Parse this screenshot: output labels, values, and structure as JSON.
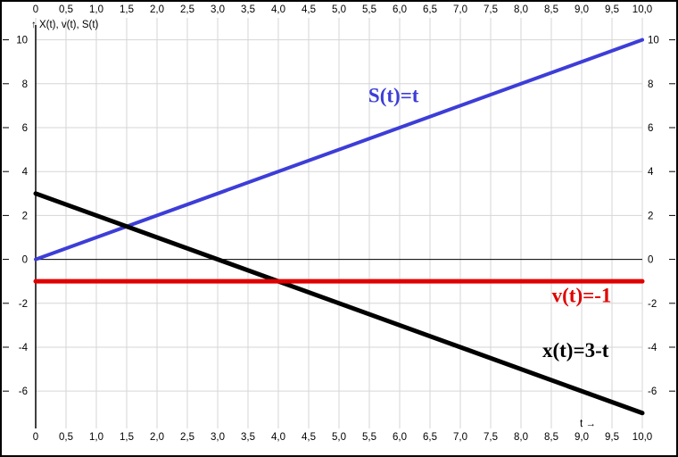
{
  "chart_data": {
    "type": "line",
    "title": "",
    "ylabel": "↑ X(t), v(t), S(t)",
    "xlabel": "t →",
    "xlim": [
      0,
      10
    ],
    "ylim": [
      -7.7,
      11.0
    ],
    "grid": true,
    "x_ticks": [
      0,
      0.5,
      1,
      1.5,
      2,
      2.5,
      3,
      3.5,
      4,
      4.5,
      5,
      5.5,
      6,
      6.5,
      7,
      7.5,
      8,
      8.5,
      9,
      9.5,
      10
    ],
    "x_tick_labels": [
      "0",
      "0,5",
      "1,0",
      "1,5",
      "2,0",
      "2,5",
      "3,0",
      "3,5",
      "4,0",
      "4,5",
      "5,0",
      "5,5",
      "6,0",
      "6,5",
      "7,0",
      "7,5",
      "8,0",
      "8,5",
      "9,0",
      "9,5",
      "10,0"
    ],
    "y_ticks": [
      10,
      8,
      6,
      4,
      2,
      0,
      -2,
      -4,
      -6
    ],
    "y_tick_labels": [
      "10",
      "8",
      "6",
      "4",
      "2",
      "0",
      "-2",
      "-4",
      "-6"
    ],
    "series": [
      {
        "name": "S(t)=t",
        "color": "#3d3dd8",
        "width": 4,
        "points": [
          [
            0,
            0
          ],
          [
            10,
            10
          ]
        ],
        "label": {
          "text": "S(t)=t",
          "x": 5.9,
          "y": 7.15
        }
      },
      {
        "name": "x(t)=3-t",
        "color": "#000000",
        "width": 5,
        "points": [
          [
            0,
            3
          ],
          [
            10,
            -7
          ]
        ],
        "label": {
          "text": "x(t)=3-t",
          "x": 8.9,
          "y": -4.45
        }
      },
      {
        "name": "v(t)=-1",
        "color": "#e00000",
        "width": 5,
        "points": [
          [
            0,
            -1
          ],
          [
            10,
            -1
          ]
        ],
        "label": {
          "text": "v(t)=-1",
          "x": 9.0,
          "y": -1.95
        }
      }
    ],
    "colors": {
      "background": "#ffffff",
      "border": "#000000",
      "grid": "#d6d6d6",
      "axis": "#000000"
    }
  }
}
